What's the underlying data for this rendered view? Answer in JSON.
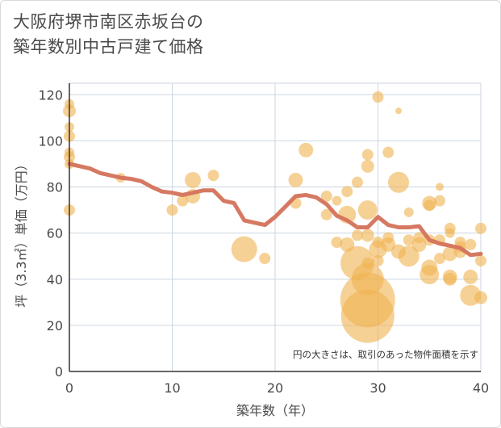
{
  "title_line1": "大阪府堺市南区赤坂台の",
  "title_line2": "築年数別中古戸建て価格",
  "note": "円の大きさは、取引のあった物件面積を示す",
  "colors": {
    "bubble": "#f0b250",
    "line": "#d4725a",
    "grid": "#ccd6e0",
    "axis": "#333333"
  },
  "chart_data": {
    "type": "scatter",
    "title": "大阪府堺市南区赤坂台の築年数別中古戸建て価格",
    "xlabel": "築年数（年）",
    "ylabel": "坪（3.3㎡）単価（万円）",
    "xlim": [
      0,
      40
    ],
    "ylim": [
      0,
      125
    ],
    "xticks": [
      0,
      10,
      20,
      30,
      40
    ],
    "yticks": [
      0,
      20,
      40,
      60,
      80,
      100,
      120
    ],
    "grid": true,
    "points": [
      {
        "x": 0,
        "y": 116,
        "s": 6
      },
      {
        "x": 0,
        "y": 113,
        "s": 8
      },
      {
        "x": 0,
        "y": 106,
        "s": 6
      },
      {
        "x": 0,
        "y": 102,
        "s": 7
      },
      {
        "x": 0,
        "y": 95,
        "s": 6
      },
      {
        "x": 0,
        "y": 93,
        "s": 7
      },
      {
        "x": 0,
        "y": 90,
        "s": 6
      },
      {
        "x": 0,
        "y": 70,
        "s": 7
      },
      {
        "x": 5,
        "y": 84,
        "s": 6
      },
      {
        "x": 10,
        "y": 70,
        "s": 7
      },
      {
        "x": 11,
        "y": 74,
        "s": 7
      },
      {
        "x": 12,
        "y": 83,
        "s": 10
      },
      {
        "x": 12,
        "y": 76,
        "s": 9
      },
      {
        "x": 14,
        "y": 85,
        "s": 7
      },
      {
        "x": 17,
        "y": 53,
        "s": 16
      },
      {
        "x": 19,
        "y": 49,
        "s": 7
      },
      {
        "x": 22,
        "y": 83,
        "s": 9
      },
      {
        "x": 22,
        "y": 73,
        "s": 7
      },
      {
        "x": 23,
        "y": 96,
        "s": 9
      },
      {
        "x": 25,
        "y": 76,
        "s": 7
      },
      {
        "x": 25,
        "y": 68,
        "s": 7
      },
      {
        "x": 26,
        "y": 74,
        "s": 6
      },
      {
        "x": 26,
        "y": 56,
        "s": 7
      },
      {
        "x": 27,
        "y": 78,
        "s": 7
      },
      {
        "x": 27,
        "y": 68,
        "s": 11
      },
      {
        "x": 27,
        "y": 55,
        "s": 9
      },
      {
        "x": 28,
        "y": 82,
        "s": 7
      },
      {
        "x": 28,
        "y": 59,
        "s": 7
      },
      {
        "x": 28,
        "y": 47,
        "s": 21
      },
      {
        "x": 29,
        "y": 94,
        "s": 7
      },
      {
        "x": 29,
        "y": 89,
        "s": 8
      },
      {
        "x": 29,
        "y": 70,
        "s": 12
      },
      {
        "x": 29,
        "y": 59,
        "s": 8
      },
      {
        "x": 29,
        "y": 47,
        "s": 7
      },
      {
        "x": 29,
        "y": 40,
        "s": 20
      },
      {
        "x": 29,
        "y": 31,
        "s": 34
      },
      {
        "x": 29,
        "y": 24,
        "s": 33
      },
      {
        "x": 30,
        "y": 119,
        "s": 7
      },
      {
        "x": 30,
        "y": 56,
        "s": 7
      },
      {
        "x": 30,
        "y": 53,
        "s": 11
      },
      {
        "x": 30,
        "y": 48,
        "s": 7
      },
      {
        "x": 31,
        "y": 95,
        "s": 7
      },
      {
        "x": 31,
        "y": 58,
        "s": 7
      },
      {
        "x": 31,
        "y": 55,
        "s": 9
      },
      {
        "x": 32,
        "y": 113,
        "s": 4
      },
      {
        "x": 32,
        "y": 82,
        "s": 13
      },
      {
        "x": 32,
        "y": 52,
        "s": 9
      },
      {
        "x": 33,
        "y": 69,
        "s": 6
      },
      {
        "x": 33,
        "y": 57,
        "s": 7
      },
      {
        "x": 33,
        "y": 50,
        "s": 13
      },
      {
        "x": 34,
        "y": 58,
        "s": 7
      },
      {
        "x": 34,
        "y": 55,
        "s": 9
      },
      {
        "x": 35,
        "y": 73,
        "s": 9
      },
      {
        "x": 35,
        "y": 72,
        "s": 7
      },
      {
        "x": 35,
        "y": 57,
        "s": 7
      },
      {
        "x": 35,
        "y": 45,
        "s": 10
      },
      {
        "x": 35,
        "y": 42,
        "s": 12
      },
      {
        "x": 36,
        "y": 80,
        "s": 5
      },
      {
        "x": 36,
        "y": 74,
        "s": 7
      },
      {
        "x": 36,
        "y": 57,
        "s": 7
      },
      {
        "x": 36,
        "y": 49,
        "s": 7
      },
      {
        "x": 37,
        "y": 62,
        "s": 7
      },
      {
        "x": 37,
        "y": 60,
        "s": 6
      },
      {
        "x": 37,
        "y": 51,
        "s": 9
      },
      {
        "x": 37,
        "y": 41,
        "s": 9
      },
      {
        "x": 37,
        "y": 40,
        "s": 8
      },
      {
        "x": 38,
        "y": 56,
        "s": 7
      },
      {
        "x": 38,
        "y": 54,
        "s": 7
      },
      {
        "x": 38,
        "y": 52,
        "s": 8
      },
      {
        "x": 39,
        "y": 55,
        "s": 7
      },
      {
        "x": 39,
        "y": 41,
        "s": 9
      },
      {
        "x": 39,
        "y": 33,
        "s": 13
      },
      {
        "x": 40,
        "y": 62,
        "s": 7
      },
      {
        "x": 40,
        "y": 48,
        "s": 7
      },
      {
        "x": 40,
        "y": 32,
        "s": 8
      }
    ],
    "trend": {
      "x": [
        0,
        1,
        2,
        3,
        4,
        5,
        6,
        7,
        8,
        9,
        10,
        11,
        12,
        13,
        14,
        15,
        16,
        17,
        18,
        19,
        20,
        21,
        22,
        23,
        24,
        25,
        26,
        27,
        28,
        29,
        30,
        31,
        32,
        33,
        34,
        35,
        36,
        37,
        38,
        39,
        40
      ],
      "y": [
        90,
        89,
        88,
        86,
        85,
        84,
        83.5,
        82.5,
        80,
        78,
        77.5,
        76.5,
        77.5,
        78.5,
        78.5,
        74,
        73,
        65.5,
        64.5,
        63.5,
        67,
        71.5,
        76,
        76.5,
        75.5,
        72.5,
        67.5,
        65.5,
        62.5,
        62.5,
        67,
        63.5,
        62.5,
        62.5,
        63,
        57,
        55.5,
        54.5,
        53.5,
        50.5,
        51
      ]
    }
  }
}
